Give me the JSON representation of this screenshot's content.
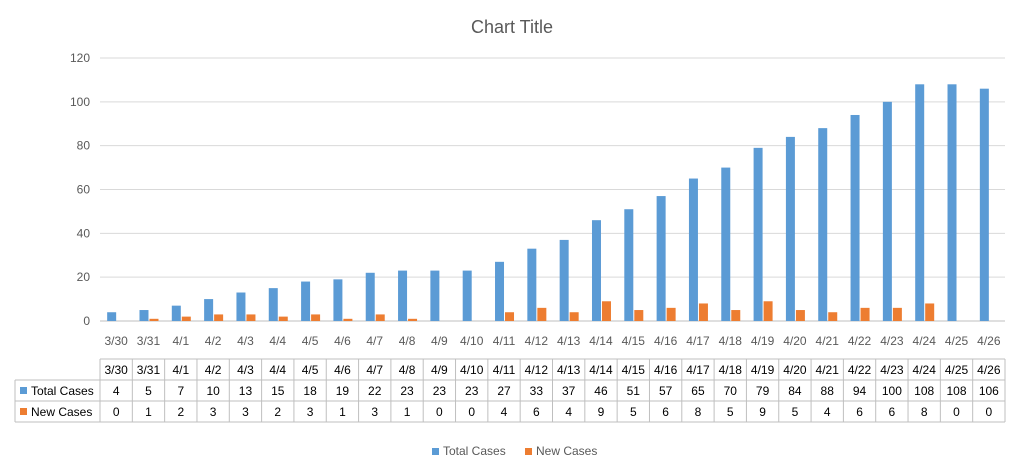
{
  "colors": {
    "total": "#5b9bd5",
    "new": "#ed7d31",
    "grid": "#d9d9d9",
    "table_border": "#bfbfbf",
    "text": "#595959"
  },
  "chart_data": {
    "type": "bar",
    "title": "Chart Title",
    "xlabel": "",
    "ylabel": "",
    "ylim": [
      0,
      120
    ],
    "yticks": [
      0,
      20,
      40,
      60,
      80,
      100,
      120
    ],
    "grid": true,
    "legend": "bottom",
    "categories": [
      "3/30",
      "3/31",
      "4/1",
      "4/2",
      "4/3",
      "4/4",
      "4/5",
      "4/6",
      "4/7",
      "4/8",
      "4/9",
      "4/10",
      "4/11",
      "4/12",
      "4/13",
      "4/14",
      "4/15",
      "4/16",
      "4/17",
      "4/18",
      "4/19",
      "4/20",
      "4/21",
      "4/22",
      "4/23",
      "4/24",
      "4/25",
      "4/26"
    ],
    "series": [
      {
        "name": "Total Cases",
        "values": [
          4,
          5,
          7,
          10,
          13,
          15,
          18,
          19,
          22,
          23,
          23,
          23,
          27,
          33,
          37,
          46,
          51,
          57,
          65,
          70,
          79,
          84,
          88,
          94,
          100,
          108,
          108,
          106
        ]
      },
      {
        "name": "New Cases",
        "values": [
          0,
          1,
          2,
          3,
          3,
          2,
          3,
          1,
          3,
          1,
          0,
          0,
          4,
          6,
          4,
          9,
          5,
          6,
          8,
          5,
          9,
          5,
          4,
          6,
          6,
          8,
          0,
          0
        ]
      }
    ]
  }
}
